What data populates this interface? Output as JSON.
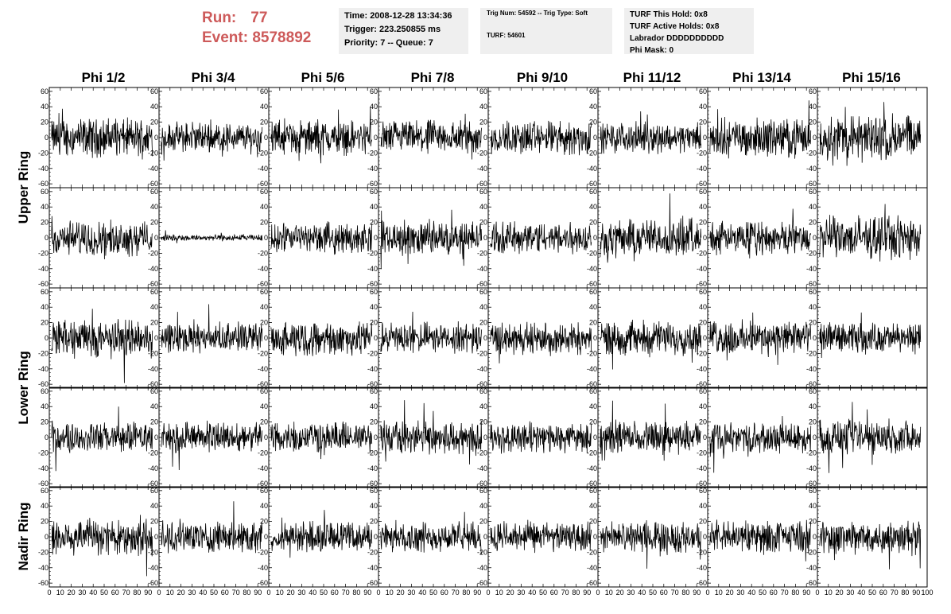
{
  "run": {
    "run_label": "Run:",
    "run_value": "77",
    "event_label": "Event:",
    "event_value": "8578892"
  },
  "info_time": {
    "time": "Time: 2008-12-28 13:34:36",
    "trigger": "Trigger: 223.250855 ms",
    "priority": "Priority: 7 -- Queue: 7"
  },
  "info_trig": {
    "trig": "Trig Num: 54592 -- Trig Type: Soft",
    "turf": "TURF: 54601"
  },
  "info_turf": {
    "hold": "TURF This Hold: 0x8",
    "active": "TURF Active Holds: 0x8",
    "labrador": "Labrador DDDDDDDDDD",
    "phimask": "Phi Mask: 0"
  },
  "columns": [
    "Phi 1/2",
    "Phi 3/4",
    "Phi 5/6",
    "Phi 7/8",
    "Phi 9/10",
    "Phi 11/12",
    "Phi 13/14",
    "Phi 15/16"
  ],
  "rows": [
    "Upper Ring",
    "Lower Ring",
    "Nadir Ring"
  ],
  "chart_data": {
    "type": "line",
    "description_grid": "5 x 8 waveform panels",
    "x_range": [
      0,
      100
    ],
    "y_range": [
      -65,
      65
    ],
    "y_tick_labels": [
      "60",
      "40",
      "20",
      "0",
      "-20",
      "-40",
      "-60"
    ],
    "y_tick_values": [
      60,
      40,
      20,
      0,
      -20,
      -40,
      -60
    ],
    "x_tick_labels": [
      "0",
      "10",
      "20",
      "30",
      "40",
      "50",
      "60",
      "70",
      "80",
      "90",
      "100"
    ],
    "x_tick_values": [
      0,
      10,
      20,
      30,
      40,
      50,
      60,
      70,
      80,
      90,
      100
    ],
    "series_amplitude": [
      [
        18,
        14,
        16,
        16,
        16,
        14,
        18,
        22
      ],
      [
        16,
        3,
        14,
        16,
        15,
        18,
        15,
        20
      ],
      [
        18,
        14,
        16,
        14,
        15,
        16,
        16,
        14
      ],
      [
        14,
        14,
        14,
        16,
        14,
        15,
        14,
        16
      ],
      [
        18,
        15,
        14,
        14,
        14,
        14,
        15,
        16
      ]
    ],
    "grid": false
  }
}
